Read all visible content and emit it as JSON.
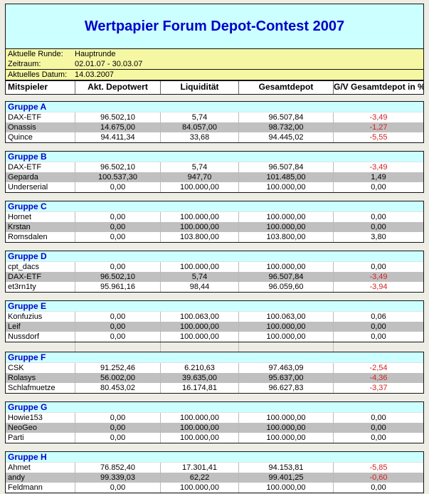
{
  "title": "Wertpapier Forum Depot-Contest 2007",
  "info": {
    "rows": [
      {
        "label": "Aktuelle Runde:",
        "value": "Hauptrunde"
      },
      {
        "label": "Zeitraum:",
        "value": "02.01.07 - 30.03.07"
      },
      {
        "label": "Aktuelles Datum:",
        "value": "14.03.2007"
      }
    ]
  },
  "columns": [
    "Mitspieler",
    "Akt. Depotwert",
    "Liquidität",
    "Gesamtdepot",
    "G/V Gesamtdepot in %"
  ],
  "groups": [
    {
      "name": "Gruppe A",
      "rows": [
        {
          "cells": [
            "DAX-ETF",
            "96.502,10",
            "5,74",
            "96.507,84",
            "-3,49"
          ],
          "negative": true
        },
        {
          "cells": [
            "Onassis",
            "14.675,00",
            "84.057,00",
            "98.732,00",
            "-1,27"
          ],
          "negative": true
        },
        {
          "cells": [
            "Quince",
            "94.411,34",
            "33,68",
            "94.445,02",
            "-5,55"
          ],
          "negative": true
        }
      ]
    },
    {
      "name": "Gruppe B",
      "rows": [
        {
          "cells": [
            "DAX-ETF",
            "96.502,10",
            "5,74",
            "96.507,84",
            "-3,49"
          ],
          "negative": true
        },
        {
          "cells": [
            "Geparda",
            "100.537,30",
            "947,70",
            "101.485,00",
            "1,49"
          ],
          "negative": false
        },
        {
          "cells": [
            "Underserial",
            "0,00",
            "100.000,00",
            "100.000,00",
            "0,00"
          ],
          "negative": false
        }
      ]
    },
    {
      "name": "Gruppe C",
      "rows": [
        {
          "cells": [
            "Hornet",
            "0,00",
            "100.000,00",
            "100.000,00",
            "0,00"
          ],
          "negative": false
        },
        {
          "cells": [
            "Krstan",
            "0,00",
            "100.000,00",
            "100.000,00",
            "0,00"
          ],
          "negative": false
        },
        {
          "cells": [
            "Romsdalen",
            "0,00",
            "103.800,00",
            "103.800,00",
            "3,80"
          ],
          "negative": false
        }
      ]
    },
    {
      "name": "Gruppe D",
      "rows": [
        {
          "cells": [
            "cpt_dacs",
            "0,00",
            "100.000,00",
            "100.000,00",
            "0,00"
          ],
          "negative": false
        },
        {
          "cells": [
            "DAX-ETF",
            "96.502,10",
            "5,74",
            "96.507,84",
            "-3,49"
          ],
          "negative": true
        },
        {
          "cells": [
            "et3rn1ty",
            "95.961,16",
            "98,44",
            "96.059,60",
            "-3,94"
          ],
          "negative": true
        }
      ]
    },
    {
      "name": "Gruppe E",
      "spacer_after": true,
      "rows": [
        {
          "cells": [
            "Konfuzius",
            "0,00",
            "100.063,00",
            "100.063,00",
            "0,06"
          ],
          "negative": false
        },
        {
          "cells": [
            "Leif",
            "0,00",
            "100.000,00",
            "100.000,00",
            "0,00"
          ],
          "negative": false
        },
        {
          "cells": [
            "Nussdorf",
            "0,00",
            "100.000,00",
            "100.000,00",
            "0,00"
          ],
          "negative": false
        }
      ]
    },
    {
      "name": "Gruppe F",
      "rows": [
        {
          "cells": [
            "CSK",
            "91.252,46",
            "6.210,63",
            "97.463,09",
            "-2,54"
          ],
          "negative": true
        },
        {
          "cells": [
            "Rolasys",
            "56.002,00",
            "39.635,00",
            "95.637,00",
            "-4,36"
          ],
          "negative": true
        },
        {
          "cells": [
            "Schlafmuetze",
            "80.453,02",
            "16.174,81",
            "96.627,83",
            "-3,37"
          ],
          "negative": true
        }
      ]
    },
    {
      "name": "Gruppe G",
      "rows": [
        {
          "cells": [
            "Howie153",
            "0,00",
            "100.000,00",
            "100.000,00",
            "0,00"
          ],
          "negative": false
        },
        {
          "cells": [
            "NeoGeo",
            "0,00",
            "100.000,00",
            "100.000,00",
            "0,00"
          ],
          "negative": false
        },
        {
          "cells": [
            "Parti",
            "0,00",
            "100.000,00",
            "100.000,00",
            "0,00"
          ],
          "negative": false
        }
      ]
    },
    {
      "name": "Gruppe H",
      "rows": [
        {
          "cells": [
            "Ahmet",
            "76.852,40",
            "17.301,41",
            "94.153,81",
            "-5,85"
          ],
          "negative": true
        },
        {
          "cells": [
            "andy",
            "99.339,03",
            "62,22",
            "99.401,25",
            "-0,60"
          ],
          "negative": true
        },
        {
          "cells": [
            "Feldmann",
            "0,00",
            "100.000,00",
            "100.000,00",
            "0,00"
          ],
          "negative": false
        }
      ]
    }
  ],
  "colors": {
    "title_text": "#0000CC",
    "negative_value": "#D22323",
    "group_header_bg": "#CCFFFF",
    "info_bg": "#F5F7A3",
    "alt_row_bg": "#C0C0C0",
    "page_bg": "#EDEDE5"
  }
}
